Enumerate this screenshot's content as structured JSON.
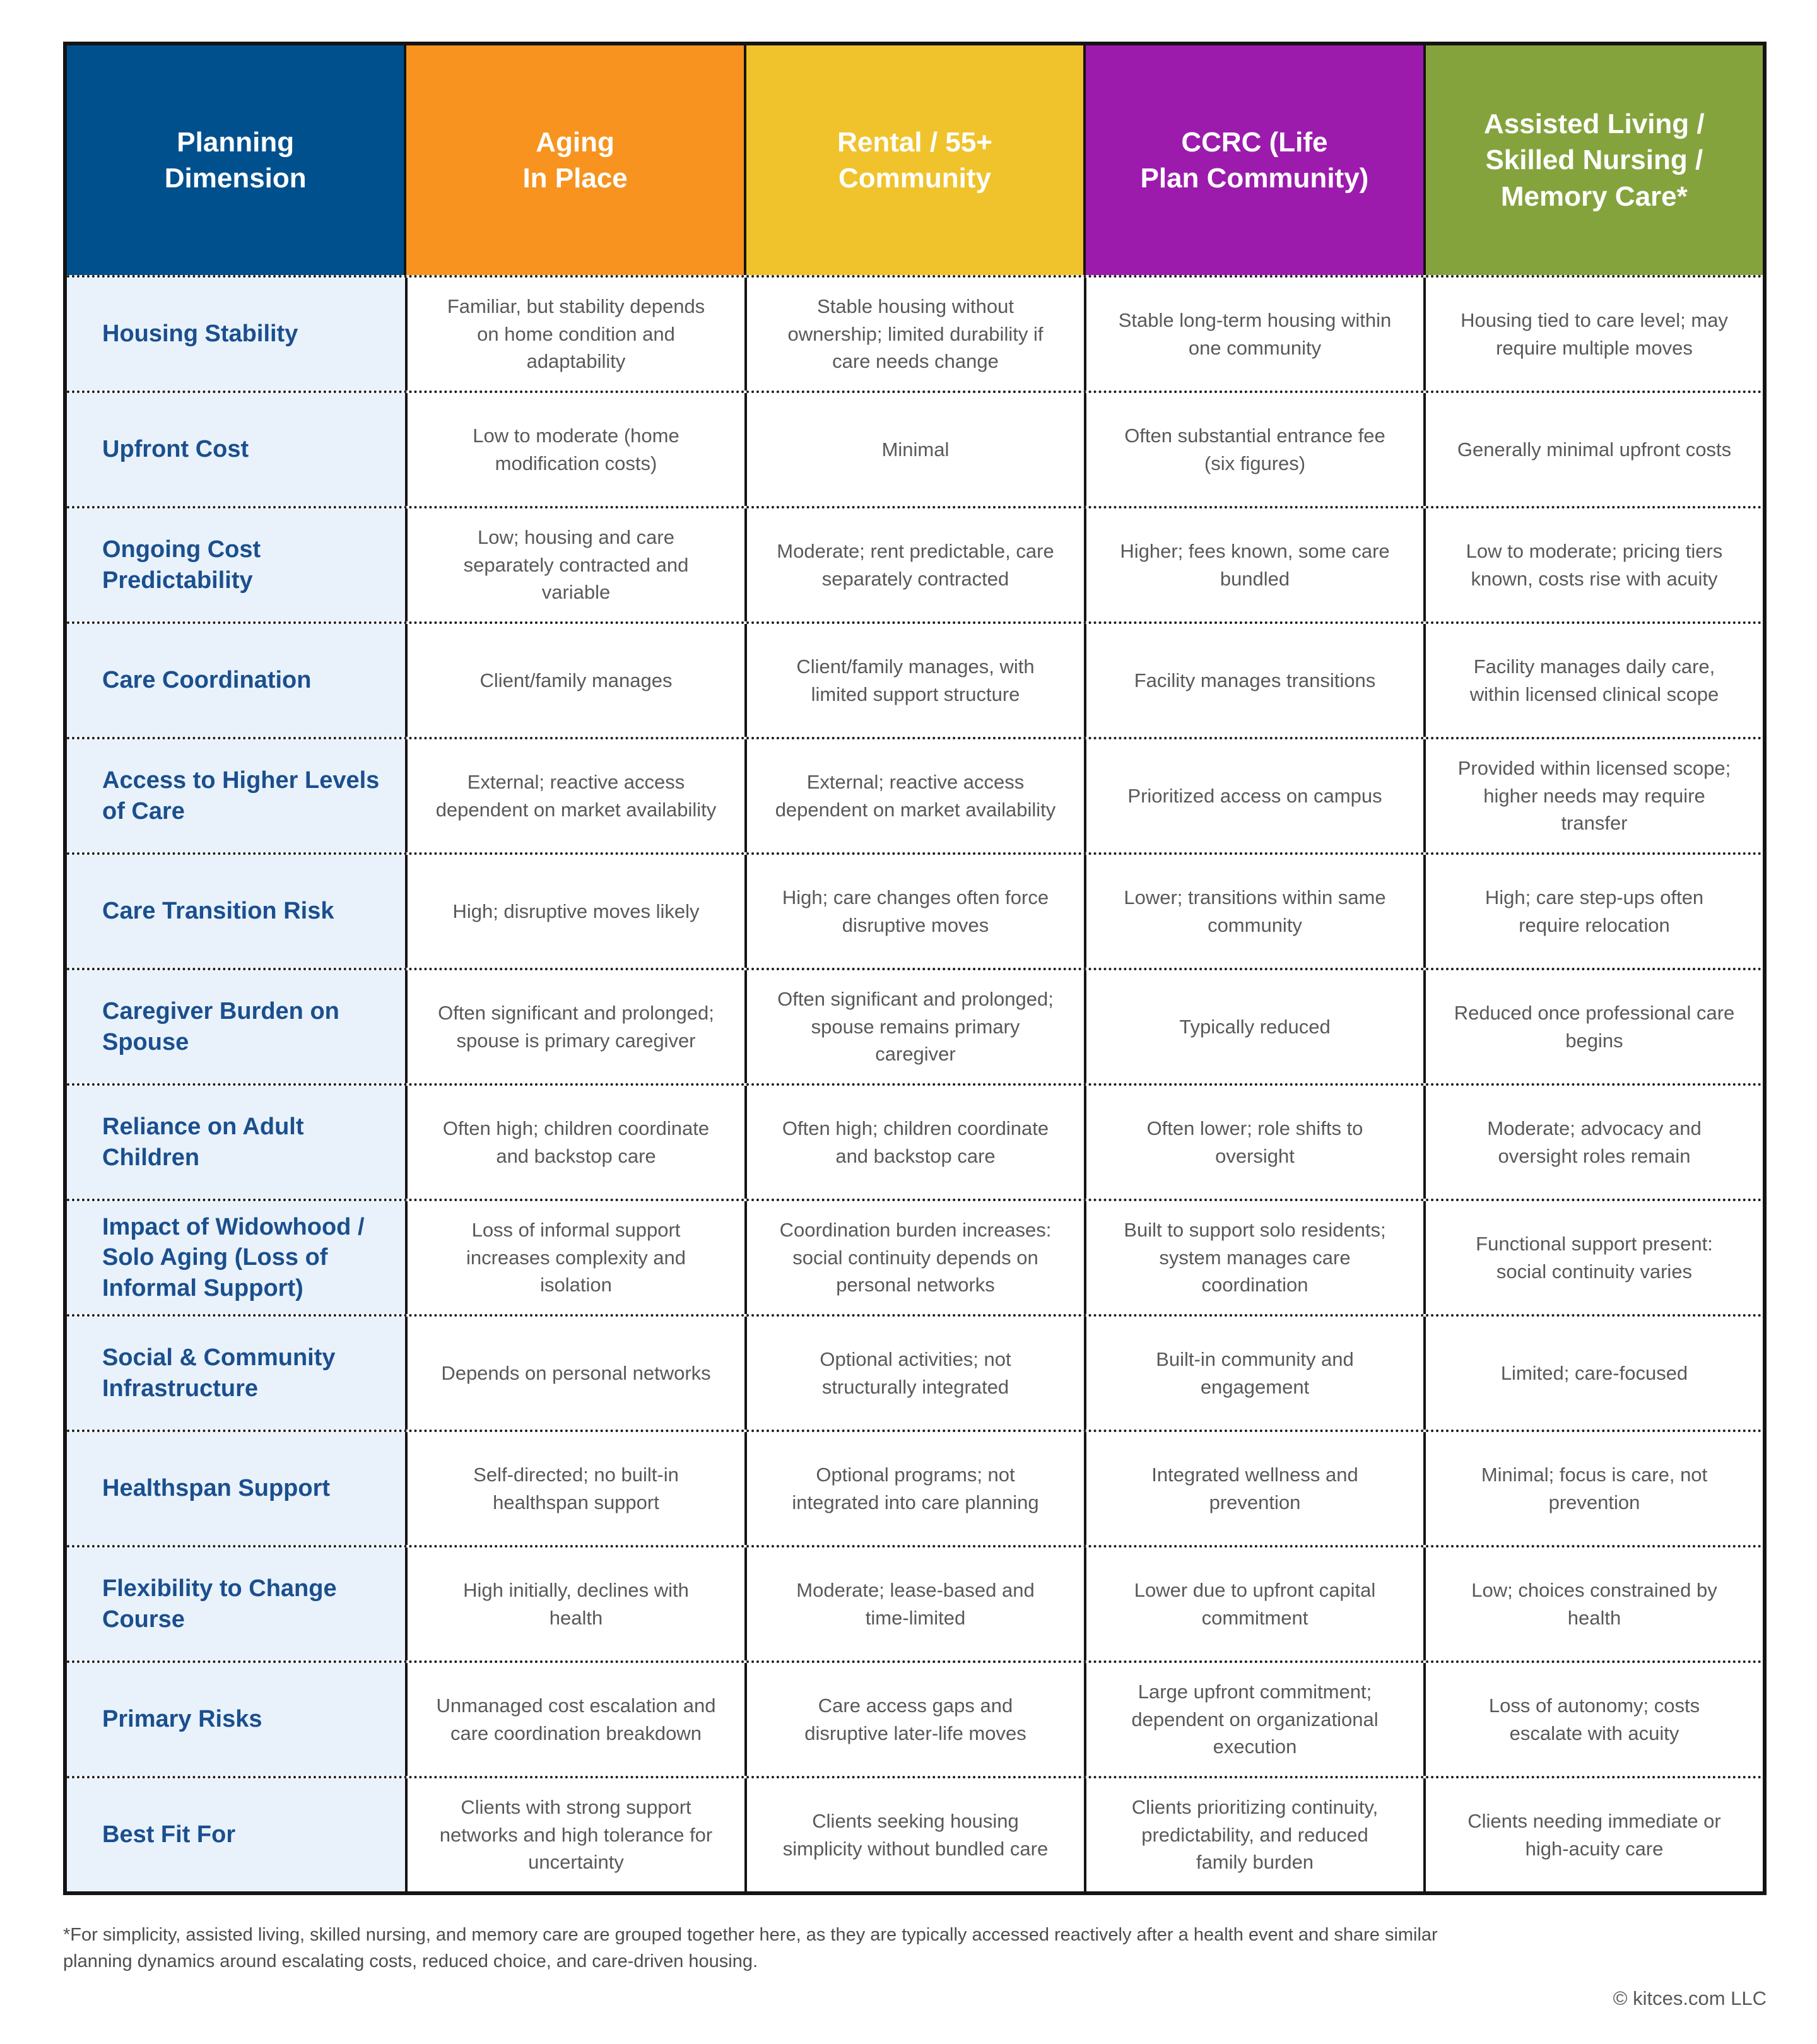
{
  "chart_data": {
    "type": "table",
    "columns": [
      {
        "label": "Planning\nDimension",
        "color": "#00508e"
      },
      {
        "label": "Aging\nIn Place",
        "color": "#f7931e"
      },
      {
        "label": "Rental / 55+\nCommunity",
        "color": "#f0c32c"
      },
      {
        "label": "CCRC (Life\nPlan Community)",
        "color": "#9c1bad"
      },
      {
        "label": "Assisted Living /\nSkilled Nursing /\nMemory Care*",
        "color": "#85a33d"
      }
    ],
    "rows": [
      {
        "dimension": "Housing Stability",
        "cells": [
          "Familiar, but stability depends on home condition and adaptability",
          "Stable housing without ownership; limited durability if care needs change",
          "Stable long-term housing within one community",
          "Housing tied to care level; may require multiple moves"
        ]
      },
      {
        "dimension": "Upfront Cost",
        "cells": [
          "Low to moderate (home modification costs)",
          "Minimal",
          "Often substantial entrance fee (six figures)",
          "Generally minimal upfront costs"
        ]
      },
      {
        "dimension": "Ongoing Cost Predictability",
        "cells": [
          "Low; housing and care separately contracted and variable",
          "Moderate; rent predictable, care separately contracted",
          "Higher; fees known, some care bundled",
          "Low to moderate; pricing tiers known, costs rise with acuity"
        ]
      },
      {
        "dimension": "Care Coordination",
        "cells": [
          "Client/family manages",
          "Client/family manages, with limited support structure",
          "Facility manages transitions",
          "Facility manages daily care, within licensed clinical scope"
        ]
      },
      {
        "dimension": "Access to Higher Levels of Care",
        "cells": [
          "External; reactive access dependent on market availability",
          "External; reactive access dependent on market availability",
          "Prioritized access on campus",
          "Provided within licensed scope; higher needs may require transfer"
        ]
      },
      {
        "dimension": "Care Transition Risk",
        "cells": [
          "High; disruptive moves likely",
          "High; care changes often force disruptive moves",
          "Lower; transitions within same community",
          "High; care step-ups often require relocation"
        ]
      },
      {
        "dimension": "Caregiver Burden on Spouse",
        "cells": [
          "Often significant and prolonged; spouse is primary caregiver",
          "Often significant and prolonged; spouse remains primary caregiver",
          "Typically reduced",
          "Reduced once professional care begins"
        ]
      },
      {
        "dimension": "Reliance on Adult Children",
        "cells": [
          "Often high; children coordinate and backstop care",
          "Often high; children coordinate and backstop care",
          "Often lower; role shifts to oversight",
          "Moderate; advocacy and oversight roles remain"
        ]
      },
      {
        "dimension": "Impact of Widowhood / Solo Aging (Loss of Informal Support)",
        "cells": [
          "Loss of informal support increases complexity and isolation",
          "Coordination burden increases: social continuity depends on personal networks",
          "Built to support solo residents; system manages care coordination",
          "Functional support present: social continuity varies"
        ]
      },
      {
        "dimension": "Social & Community Infrastructure",
        "cells": [
          "Depends on personal networks",
          "Optional activities; not structurally integrated",
          "Built-in community and engagement",
          "Limited; care-focused"
        ]
      },
      {
        "dimension": "Healthspan Support",
        "cells": [
          "Self-directed; no built-in healthspan support",
          "Optional programs; not integrated into care planning",
          "Integrated wellness and prevention",
          "Minimal; focus is care, not prevention"
        ]
      },
      {
        "dimension": "Flexibility to Change Course",
        "cells": [
          "High initially, declines with health",
          "Moderate; lease-based and time-limited",
          "Lower due to upfront capital commitment",
          "Low; choices constrained by health"
        ]
      },
      {
        "dimension": "Primary Risks",
        "cells": [
          "Unmanaged cost escalation and care coordination breakdown",
          "Care access gaps and disruptive later-life moves",
          "Large upfront commitment; dependent on organizational execution",
          "Loss of autonomy; costs escalate with acuity"
        ]
      },
      {
        "dimension": "Best Fit For",
        "cells": [
          "Clients with strong support networks and high tolerance for uncertainty",
          "Clients seeking housing simplicity without bundled care",
          "Clients prioritizing continuity, predictability, and reduced family burden",
          "Clients needing immediate or high-acuity care"
        ]
      }
    ],
    "styles": {
      "dimension_column_bg": "#e9f2fb",
      "dimension_text_color": "#1b4f8e",
      "cell_text_color": "#58595b",
      "border_color": "#141414"
    }
  },
  "footnote": "*For simplicity, assisted living, skilled nursing, and memory care are grouped together here, as they are typically accessed reactively after a health event and share similar planning dynamics around escalating costs, reduced choice, and care-driven housing.",
  "copyright": "© kitces.com LLC"
}
